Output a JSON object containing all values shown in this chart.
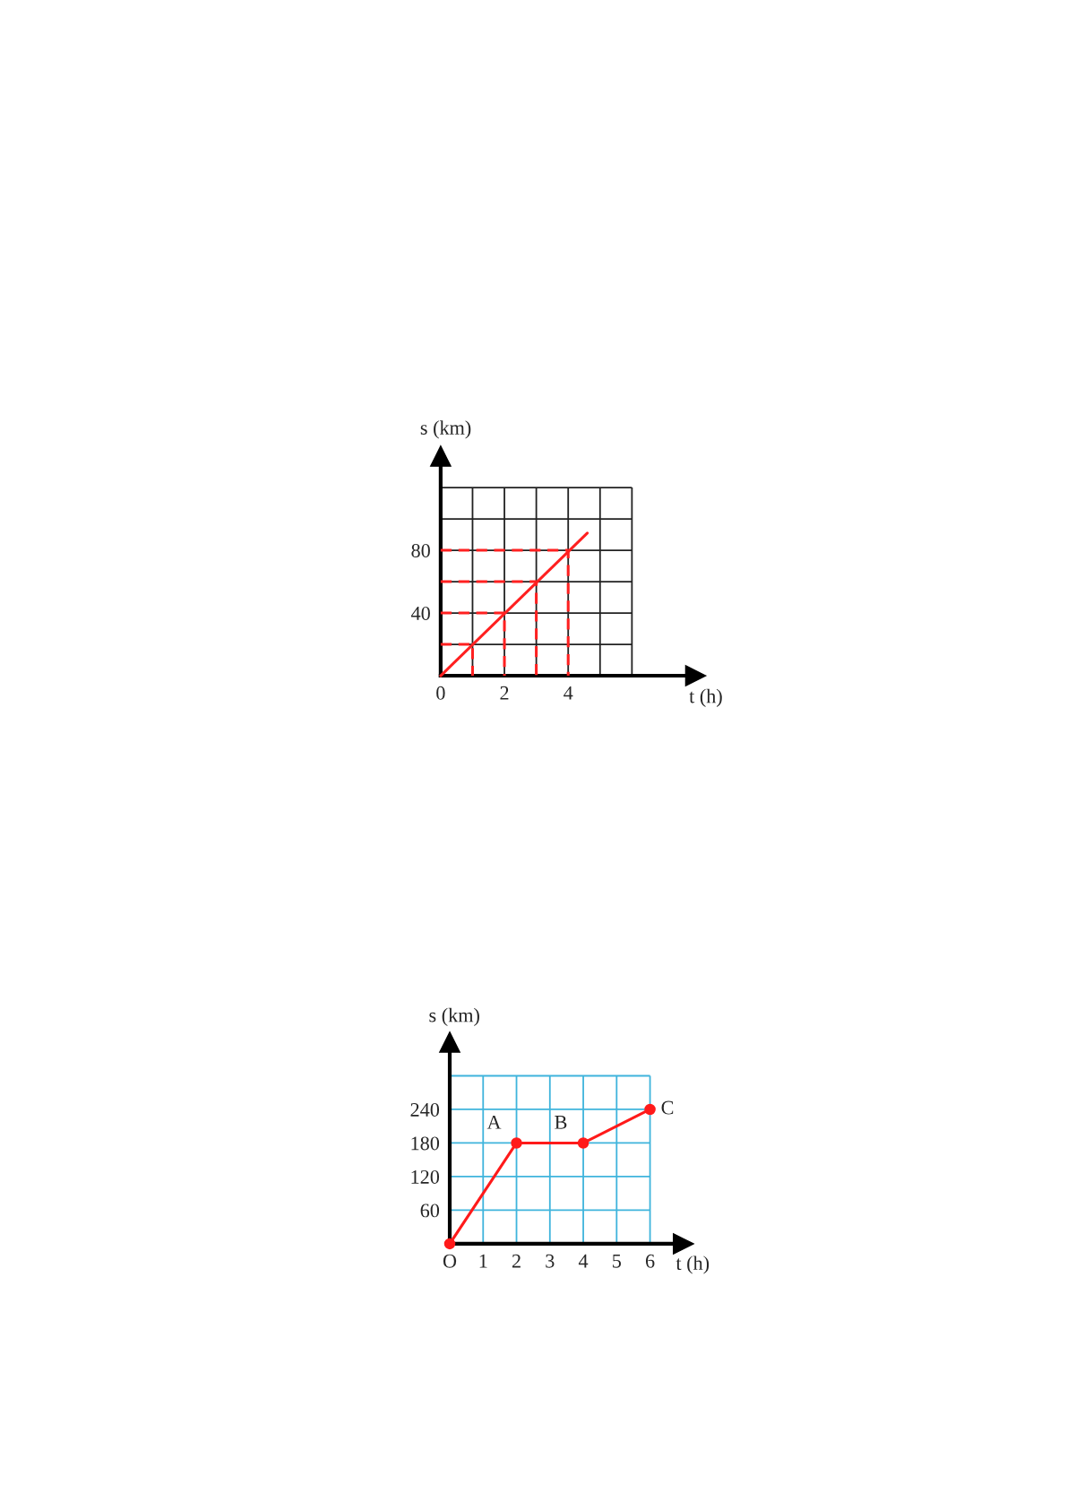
{
  "chart_data": [
    {
      "type": "line",
      "xlabel": "t (h)",
      "ylabel": "s (km)",
      "xlim": [
        0,
        8
      ],
      "ylim": [
        0,
        140
      ],
      "xticks": [
        0,
        {
          "value": 1,
          "label": null
        },
        2,
        {
          "value": 3,
          "label": null
        },
        4,
        {
          "value": 5,
          "label": null
        },
        {
          "value": 6,
          "label": null
        }
      ],
      "yticks": [
        {
          "value": 20,
          "label": null
        },
        40,
        {
          "value": 60,
          "label": null
        },
        80,
        {
          "value": 100,
          "label": null
        },
        {
          "value": 120,
          "label": null
        }
      ],
      "grid": true,
      "marker": "none",
      "series": [
        {
          "color": "#ff2020",
          "x": [
            0,
            4.6
          ],
          "values": [
            0,
            91
          ]
        },
        {
          "color": "#ff2020",
          "line_style": "dashed",
          "x": [
            0,
            1,
            1
          ],
          "values": [
            20,
            20,
            0
          ]
        },
        {
          "color": "#ff2020",
          "line_style": "dashed",
          "x": [
            0,
            2,
            2
          ],
          "values": [
            40,
            40,
            0
          ]
        },
        {
          "color": "#ff2020",
          "line_style": "dashed",
          "x": [
            0,
            3,
            3
          ],
          "values": [
            60,
            60,
            0
          ]
        },
        {
          "color": "#ff2020",
          "line_style": "dashed",
          "x": [
            0,
            4,
            4
          ],
          "values": [
            80,
            80,
            0
          ]
        }
      ]
    },
    {
      "type": "line",
      "xlabel": "t (h)",
      "ylabel": "s (km)",
      "xlim": [
        0,
        7
      ],
      "ylim": [
        0,
        360
      ],
      "xticks": [
        {
          "value": 0,
          "label": "O"
        },
        1,
        2,
        3,
        4,
        5,
        6
      ],
      "yticks": [
        60,
        120,
        180,
        240,
        {
          "value": 300,
          "label": null
        }
      ],
      "grid": true,
      "marker": "circle",
      "series": [
        {
          "color": "#ff1a1a",
          "x": [
            0,
            2,
            4,
            6
          ],
          "values": [
            0,
            180,
            180,
            240
          ]
        }
      ],
      "annotations": [
        {
          "text": "A",
          "x": 2,
          "y": 180
        },
        {
          "text": "B",
          "x": 4,
          "y": 180
        },
        {
          "text": "C",
          "x": 6,
          "y": 240
        }
      ]
    }
  ]
}
